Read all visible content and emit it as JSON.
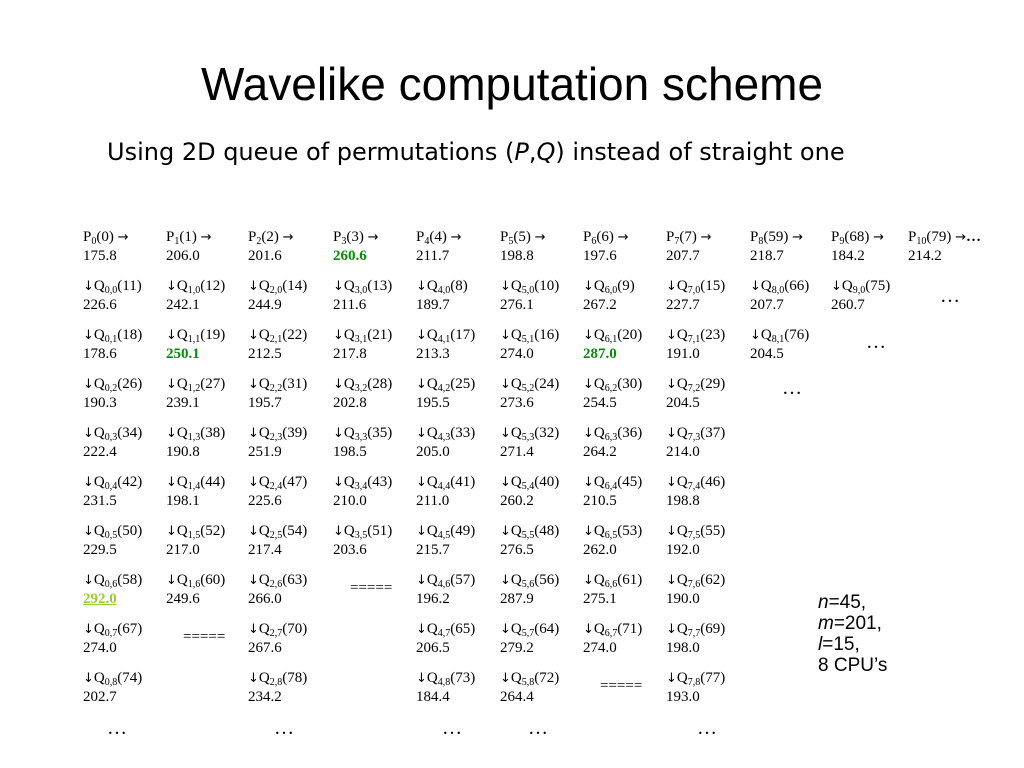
{
  "title": "Wavelike computation scheme",
  "subtitle": {
    "before": "Using 2D queue of permutations (",
    "p": "P",
    "comma": ",",
    "q": "Q",
    "after": ") instead of straight one"
  },
  "arrows": {
    "right": "→",
    "down": "↓"
  },
  "p_row": [
    {
      "sub": "0",
      "arg": "(0)",
      "value": "175.8"
    },
    {
      "sub": "1",
      "arg": "(1)",
      "value": "206.0"
    },
    {
      "sub": "2",
      "arg": "(2)",
      "value": "201.6"
    },
    {
      "sub": "3",
      "arg": "(3)",
      "value": "260.6",
      "hl": "green"
    },
    {
      "sub": "4",
      "arg": "(4)",
      "value": "211.7"
    },
    {
      "sub": "5",
      "arg": "(5)",
      "value": "198.8"
    },
    {
      "sub": "6",
      "arg": "(6)",
      "value": "197.6"
    },
    {
      "sub": "7",
      "arg": "(7)",
      "value": "207.7"
    },
    {
      "sub": "8",
      "arg": "(59)",
      "value": "218.7"
    },
    {
      "sub": "9",
      "arg": "(68)",
      "value": "184.2"
    },
    {
      "sub": "10",
      "arg": "(79)",
      "value": "214.2",
      "tail": "…"
    }
  ],
  "q_rows": [
    [
      {
        "sub": "0,0",
        "arg": "(11)",
        "value": "226.6"
      },
      {
        "sub": "1,0",
        "arg": "(12)",
        "value": "242.1"
      },
      {
        "sub": "2,0",
        "arg": "(14)",
        "value": "244.9"
      },
      {
        "sub": "3,0",
        "arg": "(13)",
        "value": "211.6"
      },
      {
        "sub": "4,0",
        "arg": "(8)",
        "value": "189.7"
      },
      {
        "sub": "5,0",
        "arg": "(10)",
        "value": "276.1"
      },
      {
        "sub": "6,0",
        "arg": "(9)",
        "value": "267.2"
      },
      {
        "sub": "7,0",
        "arg": "(15)",
        "value": "227.7"
      },
      {
        "sub": "8,0",
        "arg": "(66)",
        "value": "207.7"
      },
      {
        "sub": "9,0",
        "arg": "(75)",
        "value": "260.7"
      }
    ],
    [
      {
        "sub": "0,1",
        "arg": "(18)",
        "value": "178.6"
      },
      {
        "sub": "1,1",
        "arg": "(19)",
        "value": "250.1",
        "hl": "green"
      },
      {
        "sub": "2,1",
        "arg": "(22)",
        "value": "212.5"
      },
      {
        "sub": "3,1",
        "arg": "(21)",
        "value": "217.8"
      },
      {
        "sub": "4,1",
        "arg": "(17)",
        "value": "213.3"
      },
      {
        "sub": "5,1",
        "arg": "(16)",
        "value": "274.0"
      },
      {
        "sub": "6,1",
        "arg": "(20)",
        "value": "287.0",
        "hl": "green"
      },
      {
        "sub": "7,1",
        "arg": "(23)",
        "value": "191.0"
      },
      {
        "sub": "8,1",
        "arg": "(76)",
        "value": "204.5"
      }
    ],
    [
      {
        "sub": "0,2",
        "arg": "(26)",
        "value": "190.3"
      },
      {
        "sub": "1,2",
        "arg": "(27)",
        "value": "239.1"
      },
      {
        "sub": "2,2",
        "arg": "(31)",
        "value": "195.7"
      },
      {
        "sub": "3,2",
        "arg": "(28)",
        "value": "202.8"
      },
      {
        "sub": "4,2",
        "arg": "(25)",
        "value": "195.5"
      },
      {
        "sub": "5,2",
        "arg": "(24)",
        "value": "273.6"
      },
      {
        "sub": "6,2",
        "arg": "(30)",
        "value": "254.5"
      },
      {
        "sub": "7,2",
        "arg": "(29)",
        "value": "204.5"
      }
    ],
    [
      {
        "sub": "0,3",
        "arg": "(34)",
        "value": "222.4"
      },
      {
        "sub": "1,3",
        "arg": "(38)",
        "value": "190.8"
      },
      {
        "sub": "2,3",
        "arg": "(39)",
        "value": "251.9"
      },
      {
        "sub": "3,3",
        "arg": "(35)",
        "value": "198.5"
      },
      {
        "sub": "4,3",
        "arg": "(33)",
        "value": "205.0"
      },
      {
        "sub": "5,3",
        "arg": "(32)",
        "value": "271.4"
      },
      {
        "sub": "6,3",
        "arg": "(36)",
        "value": "264.2"
      },
      {
        "sub": "7,3",
        "arg": "(37)",
        "value": "214.0"
      }
    ],
    [
      {
        "sub": "0,4",
        "arg": "(42)",
        "value": "231.5"
      },
      {
        "sub": "1,4",
        "arg": "(44)",
        "value": "198.1"
      },
      {
        "sub": "2,4",
        "arg": "(47)",
        "value": "225.6"
      },
      {
        "sub": "3,4",
        "arg": "(43)",
        "value": "210.0"
      },
      {
        "sub": "4,4",
        "arg": "(41)",
        "value": "211.0"
      },
      {
        "sub": "5,4",
        "arg": "(40)",
        "value": "260.2"
      },
      {
        "sub": "6,4",
        "arg": "(45)",
        "value": "210.5"
      },
      {
        "sub": "7,4",
        "arg": "(46)",
        "value": "198.8"
      }
    ],
    [
      {
        "sub": "0,5",
        "arg": "(50)",
        "value": "229.5"
      },
      {
        "sub": "1,5",
        "arg": "(52)",
        "value": "217.0"
      },
      {
        "sub": "2,5",
        "arg": "(54)",
        "value": "217.4"
      },
      {
        "sub": "3,5",
        "arg": "(51)",
        "value": "203.6"
      },
      {
        "sub": "4,5",
        "arg": "(49)",
        "value": "215.7"
      },
      {
        "sub": "5,5",
        "arg": "(48)",
        "value": "276.5"
      },
      {
        "sub": "6,5",
        "arg": "(53)",
        "value": "262.0"
      },
      {
        "sub": "7,5",
        "arg": "(55)",
        "value": "192.0"
      }
    ],
    [
      {
        "sub": "0,6",
        "arg": "(58)",
        "value": "292.0",
        "hl": "lime"
      },
      {
        "sub": "1,6",
        "arg": "(60)",
        "value": "249.6"
      },
      {
        "sub": "2,6",
        "arg": "(63)",
        "value": "266.0"
      },
      {
        "sep": "====="
      },
      {
        "sub": "4,6",
        "arg": "(57)",
        "value": "196.2"
      },
      {
        "sub": "5,6",
        "arg": "(56)",
        "value": "287.9"
      },
      {
        "sub": "6,6",
        "arg": "(61)",
        "value": "275.1"
      },
      {
        "sub": "7,6",
        "arg": "(62)",
        "value": "190.0"
      }
    ],
    [
      {
        "sub": "0,7",
        "arg": "(67)",
        "value": "274.0"
      },
      {
        "sep": "====="
      },
      {
        "sub": "2,7",
        "arg": "(70)",
        "value": "267.6"
      },
      null,
      {
        "sub": "4,7",
        "arg": "(65)",
        "value": "206.5"
      },
      {
        "sub": "5,7",
        "arg": "(64)",
        "value": "279.2"
      },
      {
        "sub": "6,7",
        "arg": "(71)",
        "value": "274.0"
      },
      {
        "sub": "7,7",
        "arg": "(69)",
        "value": "198.0"
      }
    ],
    [
      {
        "sub": "0,8",
        "arg": "(74)",
        "value": "202.7"
      },
      null,
      {
        "sub": "2,8",
        "arg": "(78)",
        "value": "234.2"
      },
      null,
      {
        "sub": "4,8",
        "arg": "(73)",
        "value": "184.4"
      },
      {
        "sub": "5,8",
        "arg": "(72)",
        "value": "264.4"
      },
      {
        "sep": "====="
      },
      {
        "sub": "7,8",
        "arg": "(77)",
        "value": "193.0"
      }
    ]
  ],
  "ellipsis": "…",
  "params": [
    {
      "var": "n",
      "rest": "=45,"
    },
    {
      "var": "m",
      "rest": "=201,"
    },
    {
      "var": "l",
      "rest": "=15,"
    },
    {
      "var": "",
      "rest": "8 CPU’s"
    }
  ]
}
